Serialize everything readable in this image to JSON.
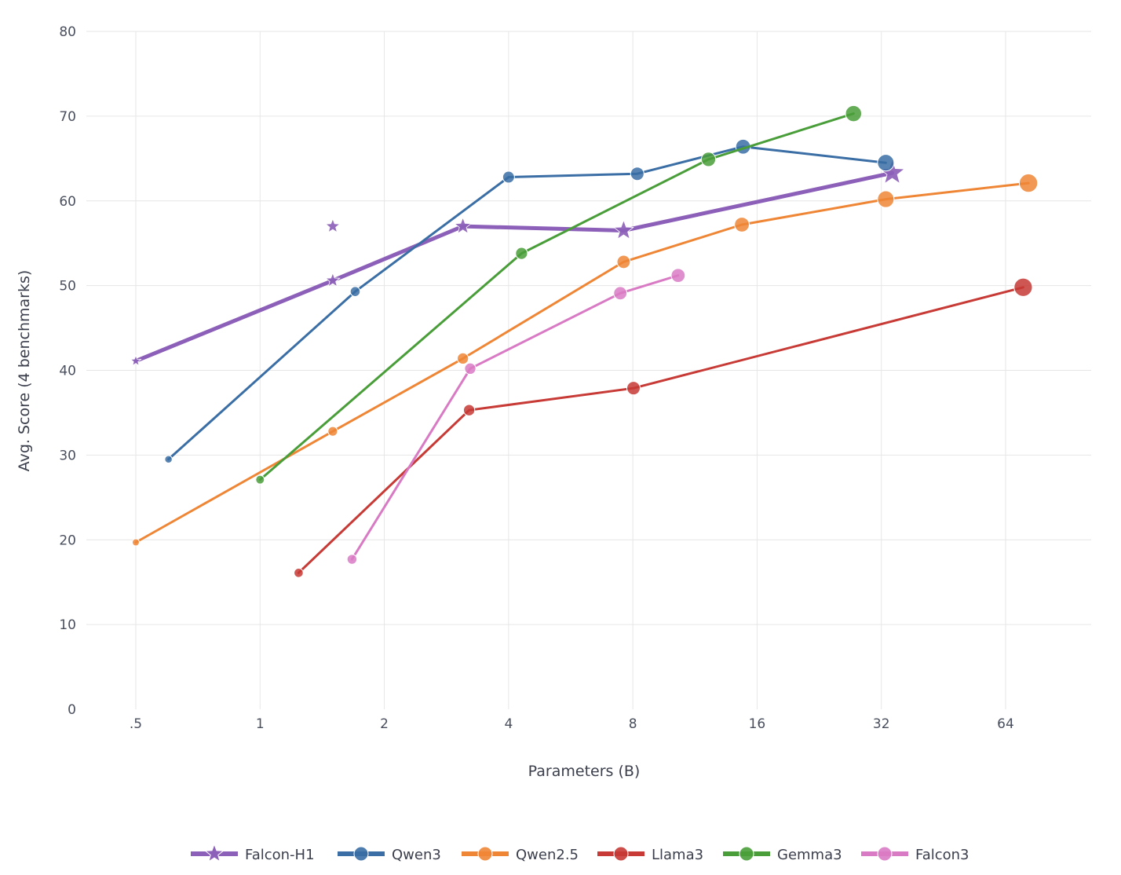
{
  "chart_data": {
    "type": "line",
    "xlabel": "Parameters (B)",
    "ylabel": "Avg. Score (4 benchmarks)",
    "x_scale": "log2",
    "xlim": [
      0.32,
      92
    ],
    "ylim": [
      0,
      80
    ],
    "x_ticks": [
      0.5,
      1,
      2,
      4,
      8,
      16,
      32,
      64
    ],
    "x_tick_labels": [
      ".5",
      "1",
      "2",
      "4",
      "8",
      "16",
      "32",
      "64"
    ],
    "y_ticks": [
      0,
      10,
      20,
      30,
      40,
      50,
      60,
      70,
      80
    ],
    "y_tick_labels": [
      "0",
      "10",
      "20",
      "30",
      "40",
      "50",
      "60",
      "70",
      "80"
    ],
    "grid": true,
    "legend_position": "bottom",
    "series": [
      {
        "name": "Falcon-H1",
        "color": "#8c5fb8",
        "marker": "star",
        "line_width": 5,
        "points": [
          {
            "x": 0.5,
            "y": 41.1
          },
          {
            "x": 1.5,
            "y": 50.6
          },
          {
            "x": 3.1,
            "y": 57.0
          },
          {
            "x": 7.6,
            "y": 56.5
          },
          {
            "x": 34,
            "y": 63.3
          }
        ],
        "extra_points": [
          {
            "x": 1.5,
            "y": 57.0
          }
        ]
      },
      {
        "name": "Qwen3",
        "color": "#3a6ea5",
        "marker": "circle",
        "line_width": 3,
        "points": [
          {
            "x": 0.6,
            "y": 29.5
          },
          {
            "x": 1.7,
            "y": 49.3
          },
          {
            "x": 4,
            "y": 62.8
          },
          {
            "x": 8.2,
            "y": 63.2
          },
          {
            "x": 14.8,
            "y": 66.4
          },
          {
            "x": 32.8,
            "y": 64.5
          }
        ]
      },
      {
        "name": "Qwen2.5",
        "color": "#ef8636",
        "marker": "circle",
        "line_width": 3,
        "points": [
          {
            "x": 0.5,
            "y": 19.7
          },
          {
            "x": 1.5,
            "y": 32.8
          },
          {
            "x": 3.1,
            "y": 41.4
          },
          {
            "x": 7.6,
            "y": 52.8
          },
          {
            "x": 14.7,
            "y": 57.2
          },
          {
            "x": 32.8,
            "y": 60.2
          },
          {
            "x": 72.7,
            "y": 62.1
          }
        ]
      },
      {
        "name": "Llama3",
        "color": "#c73a35",
        "marker": "circle",
        "line_width": 3,
        "points": [
          {
            "x": 1.24,
            "y": 16.1
          },
          {
            "x": 3.21,
            "y": 35.3
          },
          {
            "x": 8.03,
            "y": 37.9
          },
          {
            "x": 70.6,
            "y": 49.8
          }
        ]
      },
      {
        "name": "Gemma3",
        "color": "#4a9e3a",
        "marker": "circle",
        "line_width": 3,
        "points": [
          {
            "x": 1.0,
            "y": 27.1
          },
          {
            "x": 4.3,
            "y": 53.8
          },
          {
            "x": 12.2,
            "y": 64.9
          },
          {
            "x": 27.4,
            "y": 70.3
          }
        ]
      },
      {
        "name": "Falcon3",
        "color": "#d97bc4",
        "marker": "circle",
        "line_width": 3,
        "points": [
          {
            "x": 1.67,
            "y": 17.7
          },
          {
            "x": 3.23,
            "y": 40.2
          },
          {
            "x": 7.46,
            "y": 49.1
          },
          {
            "x": 10.3,
            "y": 51.2
          }
        ]
      }
    ]
  }
}
